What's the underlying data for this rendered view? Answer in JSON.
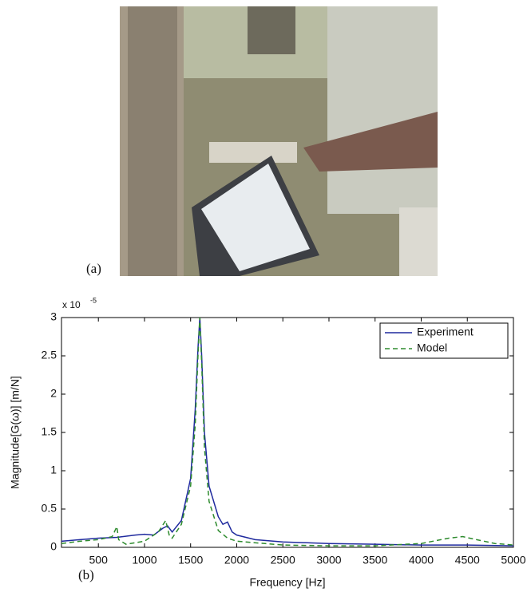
{
  "chart_data": {
    "type": "line",
    "panel_a_label": "(a)",
    "panel_b_label": "(b)",
    "x_label": "Frequency [Hz]",
    "y_label": "Magnitude[G(ω)] [m/N]",
    "y_scale_base": "x 10",
    "y_scale_exponent": "-5",
    "xlim": [
      100,
      5000
    ],
    "xticks": [
      500,
      1000,
      1500,
      2000,
      2500,
      3000,
      3500,
      4000,
      4500,
      5000
    ],
    "ylim": [
      0,
      3
    ],
    "yticks": [
      0,
      0.5,
      1,
      1.5,
      2,
      2.5,
      3
    ],
    "legend": "upper right",
    "series": [
      {
        "name": "Experiment",
        "color": "#1f2a9e",
        "dash": false,
        "x": [
          100,
          300,
          500,
          700,
          900,
          1000,
          1100,
          1200,
          1250,
          1300,
          1400,
          1500,
          1550,
          1580,
          1600,
          1620,
          1650,
          1700,
          1800,
          1850,
          1900,
          1950,
          2000,
          2200,
          2500,
          3000,
          3500,
          4000,
          4500,
          5000
        ],
        "values": [
          0.08,
          0.1,
          0.12,
          0.13,
          0.16,
          0.17,
          0.16,
          0.25,
          0.28,
          0.2,
          0.35,
          0.9,
          1.8,
          2.6,
          3.0,
          2.5,
          1.5,
          0.8,
          0.4,
          0.3,
          0.33,
          0.2,
          0.16,
          0.1,
          0.07,
          0.05,
          0.04,
          0.03,
          0.03,
          0.02
        ]
      },
      {
        "name": "Model",
        "color": "#2e8b2e",
        "dash": true,
        "x": [
          100,
          300,
          500,
          650,
          700,
          720,
          800,
          1000,
          1150,
          1230,
          1270,
          1300,
          1400,
          1500,
          1550,
          1580,
          1600,
          1620,
          1650,
          1700,
          1800,
          1900,
          2000,
          2500,
          3000,
          3500,
          4000,
          4300,
          4450,
          4600,
          4800,
          5000
        ],
        "values": [
          0.05,
          0.08,
          0.1,
          0.14,
          0.27,
          0.1,
          0.04,
          0.08,
          0.2,
          0.35,
          0.15,
          0.12,
          0.3,
          0.8,
          1.6,
          2.5,
          3.0,
          2.4,
          1.3,
          0.6,
          0.22,
          0.12,
          0.08,
          0.03,
          0.02,
          0.02,
          0.05,
          0.12,
          0.14,
          0.1,
          0.05,
          0.03
        ]
      }
    ]
  }
}
